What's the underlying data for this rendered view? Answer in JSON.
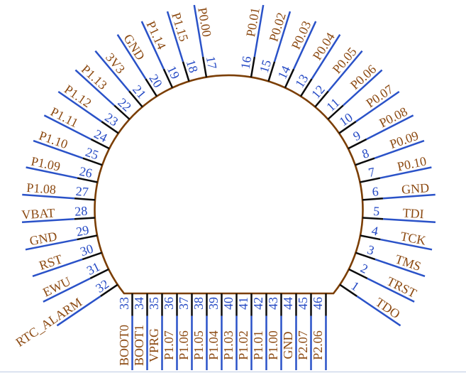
{
  "diagram": {
    "type": "ic-pinout",
    "colors": {
      "lead_line": "#2a52c8",
      "pin_number": "#2449c4",
      "pin_name": "#8c4a12",
      "body_outline": "#7b3e04",
      "tick": "#0c0c0c",
      "bottom_border": "#ccd6ea"
    },
    "radial_pins": [
      {
        "number": "1",
        "name": "TDO"
      },
      {
        "number": "2",
        "name": "TRST"
      },
      {
        "number": "3",
        "name": "TMS"
      },
      {
        "number": "4",
        "name": "TCK"
      },
      {
        "number": "5",
        "name": "TDI"
      },
      {
        "number": "6",
        "name": "GND"
      },
      {
        "number": "7",
        "name": "P0.10"
      },
      {
        "number": "8",
        "name": "P0.09"
      },
      {
        "number": "9",
        "name": "P0.08"
      },
      {
        "number": "10",
        "name": "P0.07"
      },
      {
        "number": "11",
        "name": "P0.06"
      },
      {
        "number": "12",
        "name": "P0.05"
      },
      {
        "number": "13",
        "name": "P0.04"
      },
      {
        "number": "14",
        "name": "P0.03"
      },
      {
        "number": "15",
        "name": "P0.02"
      },
      {
        "number": "16",
        "name": "P0.01"
      },
      {
        "number": "17",
        "name": "P0.00"
      },
      {
        "number": "18",
        "name": "P1.15"
      },
      {
        "number": "19",
        "name": "P1.14"
      },
      {
        "number": "20",
        "name": "GND"
      },
      {
        "number": "21",
        "name": "3V3"
      },
      {
        "number": "22",
        "name": "P1.13"
      },
      {
        "number": "23",
        "name": "P1.12"
      },
      {
        "number": "24",
        "name": "P1.11"
      },
      {
        "number": "25",
        "name": "P1.10"
      },
      {
        "number": "26",
        "name": "P1.09"
      },
      {
        "number": "27",
        "name": "P1.08"
      },
      {
        "number": "28",
        "name": "VBAT"
      },
      {
        "number": "29",
        "name": "GND"
      },
      {
        "number": "30",
        "name": "RST"
      },
      {
        "number": "31",
        "name": "EWU"
      },
      {
        "number": "32",
        "name": "RTC_ALARM"
      }
    ],
    "bottom_pins": [
      {
        "number": "33",
        "name": "BOOT0"
      },
      {
        "number": "34",
        "name": "BOOT1"
      },
      {
        "number": "35",
        "name": "VPRG"
      },
      {
        "number": "36",
        "name": "P1.07"
      },
      {
        "number": "37",
        "name": "P1.06"
      },
      {
        "number": "38",
        "name": "P1.05"
      },
      {
        "number": "39",
        "name": "P1.04"
      },
      {
        "number": "40",
        "name": "P1.03"
      },
      {
        "number": "41",
        "name": "P1.02"
      },
      {
        "number": "42",
        "name": "P1.01"
      },
      {
        "number": "43",
        "name": "P1.00"
      },
      {
        "number": "44",
        "name": "GND"
      },
      {
        "number": "45",
        "name": "P2.07"
      },
      {
        "number": "46",
        "name": "P2.06"
      }
    ]
  }
}
